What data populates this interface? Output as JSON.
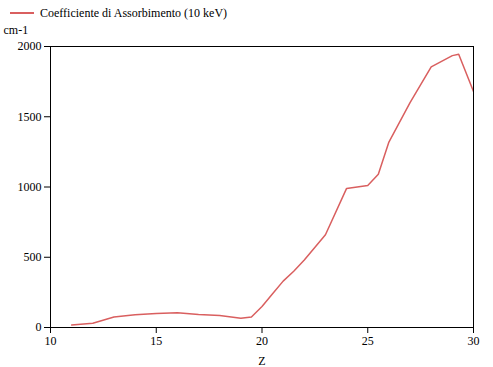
{
  "chart_data": {
    "type": "line",
    "x": [
      11,
      12,
      13,
      14,
      15,
      16,
      17,
      18,
      19,
      19.5,
      20,
      20.5,
      21,
      21.5,
      22,
      23,
      24,
      24.5,
      25,
      25.5,
      26,
      27,
      28,
      29,
      29.3,
      30
    ],
    "series": [
      {
        "name": "Coefficiente di Assorbimento (10 keV)",
        "color": "#d95f5f",
        "values": [
          18,
          30,
          75,
          90,
          100,
          105,
          92,
          85,
          65,
          75,
          150,
          240,
          330,
          400,
          480,
          660,
          990,
          1000,
          1010,
          1090,
          1320,
          1600,
          1855,
          1935,
          1945,
          1680
        ]
      }
    ],
    "xlabel": "Z",
    "ylabel": "cm-1",
    "xlim": [
      10,
      30
    ],
    "ylim": [
      0,
      2000
    ],
    "xticks": [
      10,
      15,
      20,
      25,
      30
    ],
    "yticks": [
      0,
      500,
      1000,
      1500,
      2000
    ],
    "legend": "upper left",
    "grid": false
  }
}
